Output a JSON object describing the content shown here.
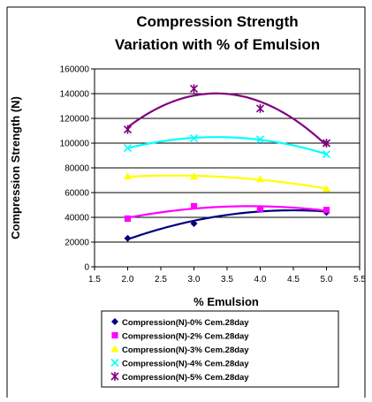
{
  "chart_data": {
    "type": "scatter",
    "title_lines": [
      "Compression Strength",
      "Variation with % of Emulsion"
    ],
    "xlabel": "% Emulsion",
    "ylabel": "Compression Strength (N)",
    "xlim": [
      1.5,
      5.5
    ],
    "ylim": [
      0,
      160000
    ],
    "x_ticks": [
      "1.5",
      "2.0",
      "2.5",
      "3.0",
      "3.5",
      "4.0",
      "4.5",
      "5.0",
      "5.5"
    ],
    "y_ticks": [
      "0",
      "20000",
      "40000",
      "60000",
      "80000",
      "100000",
      "120000",
      "140000",
      "160000"
    ],
    "grid": "horizontal",
    "legend_position": "bottom",
    "x": [
      2.0,
      3.0,
      4.0,
      5.0
    ],
    "series": [
      {
        "name": "Compression(N)-0% Cem.28day",
        "values": [
          23000,
          35000,
          47000,
          44000
        ],
        "color": "#000080",
        "marker": "diamond"
      },
      {
        "name": "Compression(N)-2% Cem.28day",
        "values": [
          39000,
          49000,
          47000,
          46000
        ],
        "color": "#FF00FF",
        "marker": "square"
      },
      {
        "name": "Compression(N)-3% Cem.28day",
        "values": [
          73000,
          73000,
          71000,
          63000
        ],
        "color": "#FFFF00",
        "marker": "triangle"
      },
      {
        "name": "Compression(N)-4% Cem.28day",
        "values": [
          96000,
          104000,
          103000,
          91000
        ],
        "color": "#00FFFF",
        "marker": "x"
      },
      {
        "name": "Compression(N)-5% Cem.28day",
        "values": [
          111000,
          144000,
          128000,
          100000
        ],
        "color": "#800080",
        "marker": "star"
      }
    ]
  }
}
